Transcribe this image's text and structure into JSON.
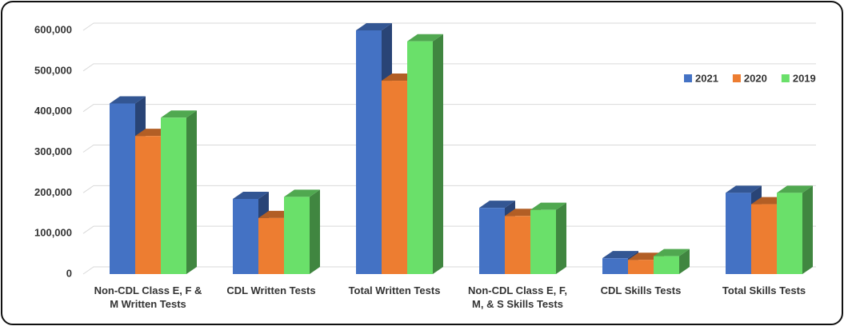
{
  "chart_data": {
    "type": "bar3d",
    "categories": [
      "Non-CDL Class E, F & M Written Tests",
      "CDL Written Tests",
      "Total Written Tests",
      "Non-CDL Class E, F, M, & S Skills Tests",
      "CDL Skills Tests",
      "Total Skills Tests"
    ],
    "series": [
      {
        "name": "2021",
        "color": "#4472c4",
        "values": [
          420000,
          185000,
          600000,
          163000,
          39000,
          200000
        ]
      },
      {
        "name": "2020",
        "color": "#ed7d31",
        "values": [
          340000,
          138000,
          476000,
          143000,
          35000,
          172000
        ]
      },
      {
        "name": "2019",
        "color": "#6ae06a",
        "values": [
          385000,
          190000,
          573000,
          158000,
          44000,
          200000
        ]
      }
    ],
    "ylim": [
      0,
      600000
    ],
    "yticks": [
      0,
      {
        "value": 100000,
        "label": "100,000"
      },
      {
        "value": 200000,
        "label": "200,000"
      },
      {
        "value": 300000,
        "label": "300,000"
      },
      {
        "value": 400000,
        "label": "400,000"
      },
      {
        "value": 500000,
        "label": "500,000"
      },
      {
        "value": 600000,
        "label": "600,000"
      }
    ],
    "grid": true,
    "legend": "upper right"
  }
}
